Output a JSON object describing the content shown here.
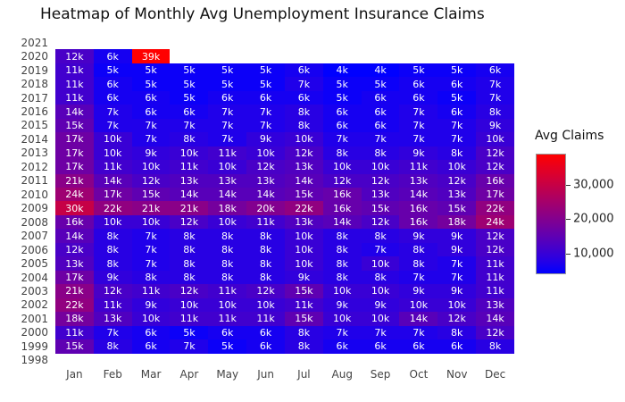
{
  "chart_data": {
    "type": "heatmap",
    "title": "Heatmap of Monthly Avg Unemployment Insurance Claims",
    "x": [
      "Jan",
      "Feb",
      "Mar",
      "Apr",
      "May",
      "Jun",
      "Jul",
      "Aug",
      "Sep",
      "Oct",
      "Nov",
      "Dec"
    ],
    "y": [
      2021,
      2020,
      2019,
      2018,
      2017,
      2016,
      2015,
      2014,
      2013,
      2012,
      2011,
      2010,
      2009,
      2008,
      2007,
      2006,
      2005,
      2004,
      2003,
      2002,
      2001,
      2000,
      1999,
      1998
    ],
    "unit": "thousands of claims (cell labels shown as Nk)",
    "matrix": [
      [
        null,
        null,
        null,
        null,
        null,
        null,
        null,
        null,
        null,
        null,
        null,
        null
      ],
      [
        12,
        6,
        39,
        null,
        null,
        null,
        null,
        null,
        null,
        null,
        null,
        null
      ],
      [
        11,
        5,
        5,
        5,
        5,
        5,
        6,
        4,
        4,
        5,
        5,
        6
      ],
      [
        11,
        6,
        5,
        5,
        5,
        5,
        7,
        5,
        5,
        6,
        6,
        7
      ],
      [
        11,
        6,
        6,
        5,
        6,
        6,
        6,
        5,
        6,
        6,
        5,
        7
      ],
      [
        14,
        7,
        6,
        6,
        7,
        7,
        8,
        6,
        6,
        7,
        6,
        8
      ],
      [
        15,
        7,
        7,
        7,
        7,
        7,
        8,
        6,
        6,
        7,
        7,
        9
      ],
      [
        17,
        10,
        7,
        8,
        7,
        9,
        10,
        7,
        7,
        7,
        7,
        10
      ],
      [
        17,
        10,
        9,
        10,
        11,
        10,
        12,
        8,
        8,
        9,
        8,
        12
      ],
      [
        17,
        11,
        10,
        11,
        10,
        12,
        13,
        10,
        10,
        11,
        10,
        12
      ],
      [
        21,
        14,
        12,
        13,
        13,
        13,
        14,
        12,
        12,
        13,
        12,
        16
      ],
      [
        24,
        17,
        15,
        14,
        14,
        14,
        15,
        16,
        13,
        14,
        13,
        17
      ],
      [
        30,
        22,
        21,
        21,
        18,
        20,
        22,
        16,
        15,
        16,
        15,
        22
      ],
      [
        16,
        10,
        10,
        12,
        10,
        11,
        13,
        14,
        12,
        16,
        18,
        24
      ],
      [
        14,
        8,
        7,
        8,
        8,
        8,
        10,
        8,
        8,
        9,
        9,
        12
      ],
      [
        12,
        8,
        7,
        8,
        8,
        8,
        10,
        8,
        7,
        8,
        9,
        12
      ],
      [
        13,
        8,
        7,
        8,
        8,
        8,
        10,
        8,
        10,
        8,
        7,
        11
      ],
      [
        17,
        9,
        8,
        8,
        8,
        8,
        9,
        8,
        8,
        7,
        7,
        11
      ],
      [
        21,
        12,
        11,
        12,
        11,
        12,
        15,
        10,
        10,
        9,
        9,
        11
      ],
      [
        22,
        11,
        9,
        10,
        10,
        10,
        11,
        9,
        9,
        10,
        10,
        13
      ],
      [
        18,
        13,
        10,
        11,
        11,
        11,
        15,
        10,
        10,
        14,
        12,
        14
      ],
      [
        11,
        7,
        6,
        5,
        6,
        6,
        8,
        7,
        7,
        7,
        8,
        12
      ],
      [
        15,
        8,
        6,
        7,
        5,
        6,
        8,
        6,
        6,
        6,
        6,
        8
      ],
      [
        null,
        null,
        null,
        null,
        null,
        null,
        null,
        null,
        null,
        null,
        null,
        null
      ]
    ],
    "colorbar_title": "Avg Claims",
    "colorbar_ticks": [
      {
        "label": "30,000",
        "value": 30
      },
      {
        "label": "20,000",
        "value": 20
      },
      {
        "label": "10,000",
        "value": 10
      }
    ],
    "color_scale": {
      "low_color": "#0000ff",
      "high_color": "#ff0000",
      "min_value": 4,
      "max_value": 39
    },
    "axis_text_color": "#444444",
    "grid": false,
    "legend_position": "right"
  }
}
